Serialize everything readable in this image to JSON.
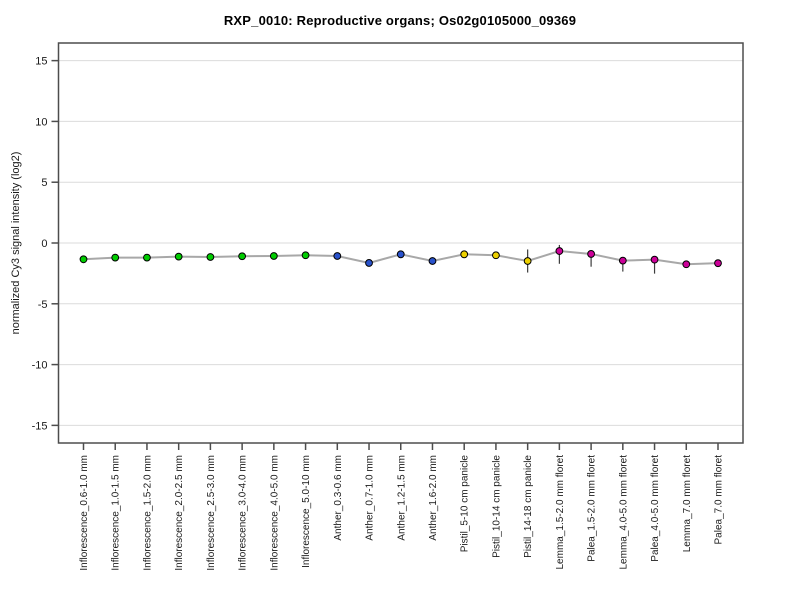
{
  "chart_data": {
    "type": "line",
    "title": "RXP_0010: Reproductive organs; Os02g0105000_09369",
    "xlabel": "",
    "ylabel": "normalized Cy3 signal intensity (log2)",
    "ylim": [
      -16.45,
      16.45
    ],
    "yticks": [
      15,
      10,
      5,
      0,
      -5,
      -10,
      -15
    ],
    "grid": true,
    "legend": false,
    "categories": [
      "Inflorescence_0.6-1.0 mm",
      "Inflorescence_1.0-1.5 mm",
      "Inflorescence_1.5-2.0 mm",
      "Inflorescence_2.0-2.5 mm",
      "Inflorescence_2.5-3.0 mm",
      "Inflorescence_3.0-4.0 mm",
      "Inflorescence_4.0-5.0 mm",
      "Inflorescence_5.0-10 mm",
      "Anther_0.3-0.6 mm",
      "Anther_0.7-1.0 mm",
      "Anther_1.2-1.5 mm",
      "Anther_1.6-2.0 mm",
      "Pistil_5-10 cm panicle",
      "Pistil_10-14 cm panicle",
      "Pistil_14-18 cm panicle",
      "Lemma_1.5-2.0 mm floret",
      "Palea_1.5-2.0 mm floret",
      "Lemma_4.0-5.0 mm floret",
      "Palea_4.0-5.0 mm floret",
      "Lemma_7.0 mm floret",
      "Palea_7.0 mm floret"
    ],
    "series": [
      {
        "name": "normalized Cy3 signal intensity",
        "values": [
          -1.34,
          -1.2,
          -1.2,
          -1.12,
          -1.15,
          -1.09,
          -1.07,
          -1.01,
          -1.07,
          -1.64,
          -0.93,
          -1.48,
          -0.93,
          -1.01,
          -1.48,
          -0.66,
          -0.9,
          -1.45,
          -1.37,
          -1.75,
          -1.66
        ],
        "err_up": [
          0.15,
          0.3,
          0.2,
          0.2,
          0.15,
          0.15,
          0.15,
          0.15,
          0.2,
          0.25,
          0.2,
          0.3,
          0.25,
          0.3,
          0.95,
          0.5,
          0.3,
          0.3,
          0.25,
          0.3,
          0.25
        ],
        "err_down": [
          0.15,
          0.3,
          0.2,
          0.2,
          0.15,
          0.15,
          0.15,
          0.15,
          0.2,
          0.25,
          0.2,
          0.3,
          0.25,
          0.3,
          0.95,
          1.05,
          1.05,
          0.9,
          1.15,
          0.3,
          0.25
        ],
        "group_index": [
          0,
          0,
          0,
          0,
          0,
          0,
          0,
          0,
          1,
          1,
          1,
          1,
          2,
          2,
          2,
          3,
          3,
          3,
          3,
          3,
          3
        ]
      }
    ],
    "groups": [
      {
        "name": "Inflorescence",
        "color": "#00cc00"
      },
      {
        "name": "Anther",
        "color": "#2952cc"
      },
      {
        "name": "Pistil",
        "color": "#edd100"
      },
      {
        "name": "Lemma/Palea",
        "color": "#cc0099"
      }
    ],
    "colors": {
      "series_line": "#a8a8a8",
      "error_bar": "#3c3c3c",
      "grid_line": "#dbdbdb",
      "axis_box": "#4d4d4d",
      "tick_label": "#1a1a1a",
      "point_stroke": "#000000",
      "background": "#ffffff"
    }
  }
}
